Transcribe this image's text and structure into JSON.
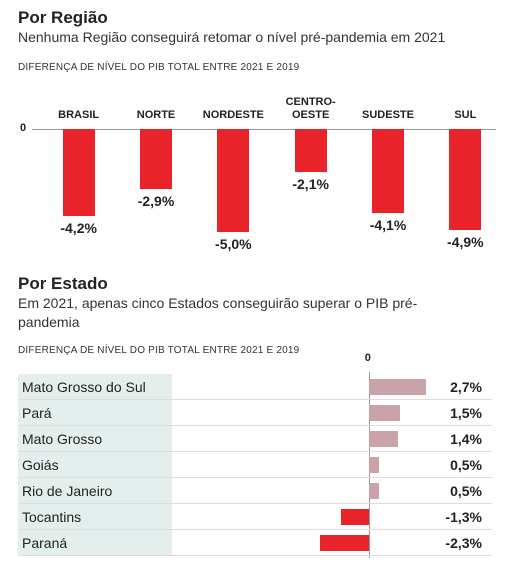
{
  "chart_data": [
    {
      "type": "bar",
      "title": "Por Região",
      "subtitle": "Nenhuma Região conseguirá retomar o nível pré-pandemia em 2021",
      "axis_label": "DIFERENÇA DE NÍVEL DO PIB TOTAL ENTRE 2021 E 2019",
      "categories": [
        "BRASIL",
        "NORTE",
        "NORDESTE",
        "CENTRO-OESTE",
        "SUDESTE",
        "SUL"
      ],
      "values": [
        -4.2,
        -2.9,
        -5.0,
        -2.1,
        -4.1,
        -4.9
      ],
      "value_labels": [
        "-4,2%",
        "-2,9%",
        "-5,0%",
        "-2,1%",
        "-4,1%",
        "-4,9%"
      ],
      "color": "#e8232a",
      "ylim": [
        -5,
        0
      ],
      "yticks": [
        0
      ]
    },
    {
      "type": "hbar",
      "title": "Por Estado",
      "subtitle": "Em 2021, apenas cinco Estados conseguirão superar o PIB pré-pandemia",
      "axis_label": "DIFERENÇA DE NÍVEL DO PIB TOTAL ENTRE 2021 E 2019",
      "categories": [
        "Mato Grosso do Sul",
        "Pará",
        "Mato Grosso",
        "Goiás",
        "Rio de Janeiro",
        "Tocantins",
        "Paraná"
      ],
      "values": [
        2.7,
        1.5,
        1.4,
        0.5,
        0.5,
        -1.3,
        -2.3
      ],
      "value_labels": [
        "2,7%",
        "1,5%",
        "1,4%",
        "0,5%",
        "0,5%",
        "-1,3%",
        "-2,3%"
      ],
      "color_positive": "#c9a3a8",
      "color_negative": "#e8232a",
      "xlim": [
        -2.5,
        3.0
      ],
      "xticks": [
        0
      ]
    }
  ]
}
